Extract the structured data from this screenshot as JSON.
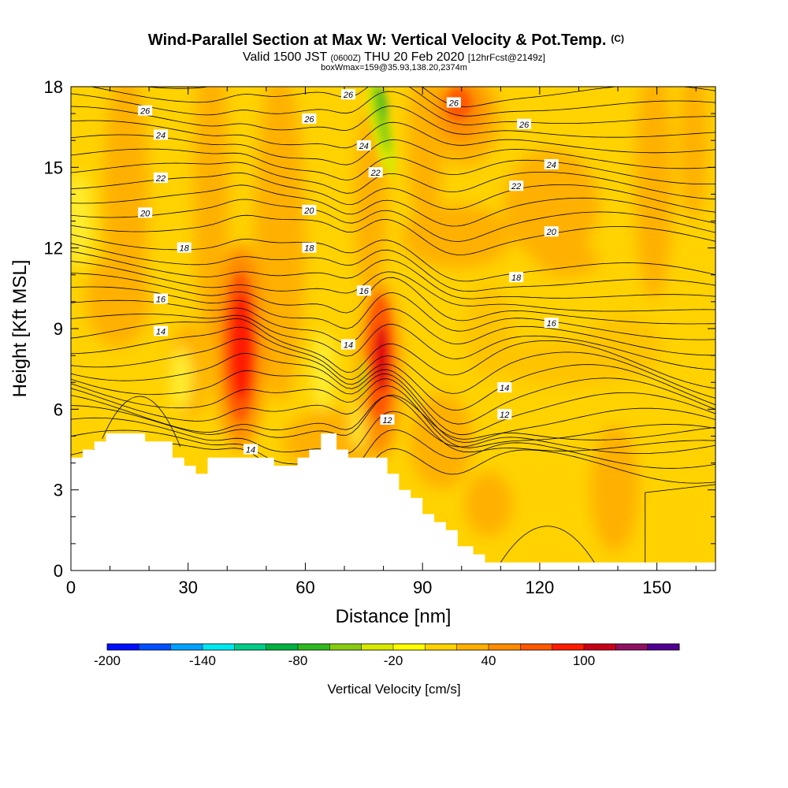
{
  "title": {
    "main": "Wind-Parallel Section at Max W: Vertical Velocity & Pot.Temp.",
    "copyright": "(C)",
    "valid_prefix": "Valid 1500 JST",
    "valid_utc": "(0600Z)",
    "valid_suffix": "THU 20 Feb 2020",
    "forecast": "[12hrFcst@2149z]",
    "box": "boxWmax=159@35.93,138.20,2374m"
  },
  "chart_data": {
    "type": "heatmap",
    "xlabel": "Distance [nm]",
    "ylabel": "Height [Kft MSL]",
    "xlim": [
      0,
      165
    ],
    "ylim": [
      0,
      18
    ],
    "x_ticks": [
      0,
      30,
      60,
      90,
      120,
      150
    ],
    "y_ticks": [
      0,
      3,
      6,
      9,
      12,
      15,
      18
    ],
    "shaded_field": "Vertical Velocity [cm/s]",
    "contour_field": "Potential Temperature (C)",
    "contour_interval": 1,
    "contour_labels": [
      {
        "value": "26",
        "x": 19,
        "y": 17.1
      },
      {
        "value": "26",
        "x": 61,
        "y": 16.8
      },
      {
        "value": "26",
        "x": 71,
        "y": 17.7
      },
      {
        "value": "26",
        "x": 98,
        "y": 17.4
      },
      {
        "value": "26",
        "x": 116,
        "y": 16.6
      },
      {
        "value": "24",
        "x": 23,
        "y": 16.2
      },
      {
        "value": "24",
        "x": 75,
        "y": 15.8
      },
      {
        "value": "24",
        "x": 123,
        "y": 15.1
      },
      {
        "value": "22",
        "x": 23,
        "y": 14.6
      },
      {
        "value": "22",
        "x": 78,
        "y": 14.8
      },
      {
        "value": "22",
        "x": 114,
        "y": 14.3
      },
      {
        "value": "20",
        "x": 19,
        "y": 13.3
      },
      {
        "value": "20",
        "x": 61,
        "y": 13.4
      },
      {
        "value": "20",
        "x": 123,
        "y": 12.6
      },
      {
        "value": "18",
        "x": 29,
        "y": 12.0
      },
      {
        "value": "18",
        "x": 61,
        "y": 12.0
      },
      {
        "value": "18",
        "x": 114,
        "y": 10.9
      },
      {
        "value": "16",
        "x": 23,
        "y": 10.1
      },
      {
        "value": "16",
        "x": 75,
        "y": 10.4
      },
      {
        "value": "16",
        "x": 123,
        "y": 9.2
      },
      {
        "value": "14",
        "x": 23,
        "y": 8.9
      },
      {
        "value": "14",
        "x": 71,
        "y": 8.4
      },
      {
        "value": "14",
        "x": 111,
        "y": 6.8
      },
      {
        "value": "14",
        "x": 46,
        "y": 4.5
      },
      {
        "value": "12",
        "x": 81,
        "y": 5.6
      },
      {
        "value": "12",
        "x": 111,
        "y": 5.8
      }
    ],
    "updrafts": [
      {
        "x": 44,
        "y": 8.5,
        "max_cm_s": 100
      },
      {
        "x": 79,
        "y": 7.5,
        "max_cm_s": 100
      },
      {
        "x": 98,
        "y": 17.5,
        "max_cm_s": 60
      },
      {
        "x": 78,
        "y": 16.5,
        "min_cm_s": -60
      }
    ],
    "terrain_kft": [
      [
        0,
        4.2
      ],
      [
        3,
        4.2
      ],
      [
        3,
        4.5
      ],
      [
        6,
        4.5
      ],
      [
        6,
        4.8
      ],
      [
        9,
        4.8
      ],
      [
        9,
        5.1
      ],
      [
        19,
        5.1
      ],
      [
        19,
        4.8
      ],
      [
        26,
        4.8
      ],
      [
        26,
        4.2
      ],
      [
        29,
        4.2
      ],
      [
        29,
        3.9
      ],
      [
        32,
        3.9
      ],
      [
        32,
        3.6
      ],
      [
        35,
        3.6
      ],
      [
        35,
        4.2
      ],
      [
        52,
        4.2
      ],
      [
        52,
        3.9
      ],
      [
        58,
        3.9
      ],
      [
        58,
        4.2
      ],
      [
        61,
        4.2
      ],
      [
        61,
        4.5
      ],
      [
        64,
        4.5
      ],
      [
        64,
        5.1
      ],
      [
        68,
        5.1
      ],
      [
        68,
        4.5
      ],
      [
        71,
        4.5
      ],
      [
        71,
        4.2
      ],
      [
        81,
        4.2
      ],
      [
        81,
        3.6
      ],
      [
        84,
        3.6
      ],
      [
        84,
        3.0
      ],
      [
        87,
        3.0
      ],
      [
        87,
        2.7
      ],
      [
        90,
        2.7
      ],
      [
        90,
        2.1
      ],
      [
        93,
        2.1
      ],
      [
        93,
        1.8
      ],
      [
        96,
        1.8
      ],
      [
        96,
        1.5
      ],
      [
        99,
        1.5
      ],
      [
        99,
        0.9
      ],
      [
        103,
        0.9
      ],
      [
        103,
        0.6
      ],
      [
        106,
        0.6
      ],
      [
        106,
        0.3
      ],
      [
        165,
        0.3
      ]
    ],
    "colorbar": {
      "label": "Vertical Velocity [cm/s]",
      "tick_labels": [
        "-200",
        "-140",
        "-80",
        "-20",
        "40",
        "100"
      ],
      "tick_values": [
        -200,
        -140,
        -80,
        -20,
        40,
        100
      ],
      "bins": [
        -200,
        -180,
        -160,
        -140,
        -120,
        -100,
        -80,
        -60,
        -40,
        -20,
        0,
        20,
        40,
        60,
        80,
        100,
        120,
        140
      ],
      "colors": [
        "#0010ff",
        "#0050ff",
        "#00a0ff",
        "#00e8f0",
        "#00cc88",
        "#00b040",
        "#30b820",
        "#88cc10",
        "#d8e800",
        "#ffff00",
        "#ffd200",
        "#ffb000",
        "#ff8c00",
        "#ff5800",
        "#ff1c00",
        "#c80018",
        "#901060",
        "#500090"
      ]
    }
  }
}
